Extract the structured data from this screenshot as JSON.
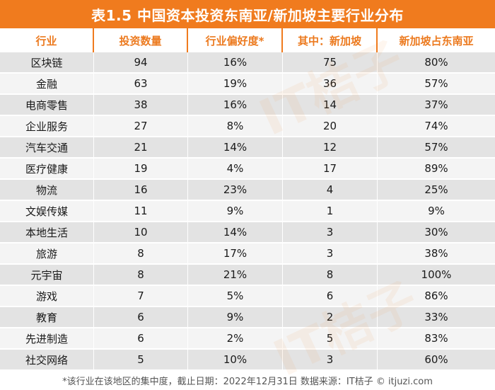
{
  "title": "表1.5  中国资本投资东南亚/新加坡主要行业分布",
  "headers": [
    "行业",
    "投资数量",
    "行业偏好度*",
    "其中：新加坡",
    "新加坡占东南亚"
  ],
  "rows": [
    [
      "区块链",
      "94",
      "16%",
      "75",
      "80%"
    ],
    [
      "金融",
      "63",
      "19%",
      "36",
      "57%"
    ],
    [
      "电商零售",
      "38",
      "16%",
      "14",
      "37%"
    ],
    [
      "企业服务",
      "27",
      "8%",
      "20",
      "74%"
    ],
    [
      "汽车交通",
      "21",
      "14%",
      "12",
      "57%"
    ],
    [
      "医疗健康",
      "19",
      "4%",
      "17",
      "89%"
    ],
    [
      "物流",
      "16",
      "23%",
      "4",
      "25%"
    ],
    [
      "文娱传媒",
      "11",
      "9%",
      "1",
      "9%"
    ],
    [
      "本地生活",
      "10",
      "14%",
      "3",
      "30%"
    ],
    [
      "旅游",
      "8",
      "17%",
      "3",
      "38%"
    ],
    [
      "元宇宙",
      "8",
      "21%",
      "8",
      "100%"
    ],
    [
      "游戏",
      "7",
      "5%",
      "6",
      "86%"
    ],
    [
      "教育",
      "6",
      "9%",
      "2",
      "33%"
    ],
    [
      "先进制造",
      "6",
      "2%",
      "5",
      "83%"
    ],
    [
      "社交网络",
      "5",
      "10%",
      "3",
      "60%"
    ]
  ],
  "footer": "*该行业在该地区的集中度，截止日期：2022年12月31日    数据来源：IT桔子 © itjuzi.com",
  "colors": {
    "accent": "#f07b1e",
    "row_odd": "#e3e3e3",
    "row_even": "#f4f4f4"
  },
  "watermark_text": "IT桔子"
}
